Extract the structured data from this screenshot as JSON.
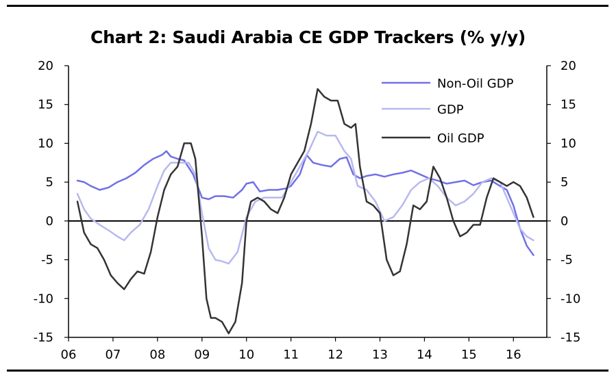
{
  "chart_data": {
    "type": "line",
    "title": "Chart 2: Saudi Arabia CE GDP Trackers (% y/y)",
    "xlabel": "",
    "ylabel": "",
    "ylim": [
      -15,
      20
    ],
    "yticks": [
      -15,
      -10,
      -5,
      0,
      5,
      10,
      15,
      20
    ],
    "ytick_labels": [
      "-15",
      "-10",
      "-5",
      "0",
      "5",
      "10",
      "15",
      "20"
    ],
    "xlim": [
      2006,
      2016.75
    ],
    "xticks": [
      2006,
      2007,
      2008,
      2009,
      2010,
      2011,
      2012,
      2013,
      2014,
      2015,
      2016
    ],
    "xtick_labels": [
      "06",
      "07",
      "08",
      "09",
      "10",
      "11",
      "12",
      "13",
      "14",
      "15",
      "16"
    ],
    "legend_position": "top-right",
    "series": [
      {
        "name": "Non-Oil GDP",
        "color": "#7070e6",
        "x": [
          2006.2,
          2006.35,
          2006.5,
          2006.7,
          2006.9,
          2007.1,
          2007.3,
          2007.5,
          2007.7,
          2007.9,
          2008.1,
          2008.2,
          2008.3,
          2008.45,
          2008.6,
          2008.8,
          2009.0,
          2009.15,
          2009.3,
          2009.5,
          2009.7,
          2009.9,
          2010.0,
          2010.15,
          2010.3,
          2010.5,
          2010.7,
          2010.9,
          2011.0,
          2011.2,
          2011.35,
          2011.5,
          2011.7,
          2011.9,
          2012.1,
          2012.25,
          2012.4,
          2012.55,
          2012.7,
          2012.9,
          2013.1,
          2013.3,
          2013.5,
          2013.7,
          2013.9,
          2014.1,
          2014.3,
          2014.5,
          2014.7,
          2014.9,
          2015.1,
          2015.3,
          2015.5,
          2015.7,
          2015.85,
          2016.0,
          2016.15,
          2016.3,
          2016.45
        ],
        "values": [
          5.2,
          5.0,
          4.5,
          4.0,
          4.3,
          5.0,
          5.5,
          6.2,
          7.2,
          8.0,
          8.5,
          9.0,
          8.3,
          8.0,
          7.8,
          6.0,
          3.0,
          2.8,
          3.2,
          3.2,
          3.0,
          4.0,
          4.8,
          5.0,
          3.8,
          4.0,
          4.0,
          4.2,
          4.5,
          6.0,
          8.5,
          7.5,
          7.2,
          7.0,
          8.0,
          8.2,
          6.0,
          5.5,
          5.8,
          6.0,
          5.7,
          6.0,
          6.2,
          6.5,
          6.0,
          5.5,
          5.2,
          4.8,
          5.0,
          5.2,
          4.6,
          5.0,
          5.2,
          4.5,
          4.0,
          2.0,
          -1.0,
          -3.2,
          -4.4
        ]
      },
      {
        "name": "GDP",
        "color": "#b8b8f0",
        "x": [
          2006.2,
          2006.35,
          2006.5,
          2006.7,
          2006.9,
          2007.1,
          2007.25,
          2007.4,
          2007.6,
          2007.8,
          2008.0,
          2008.15,
          2008.3,
          2008.5,
          2008.7,
          2008.85,
          2009.0,
          2009.15,
          2009.3,
          2009.45,
          2009.6,
          2009.8,
          2010.0,
          2010.2,
          2010.4,
          2010.6,
          2010.8,
          2011.0,
          2011.2,
          2011.4,
          2011.6,
          2011.8,
          2012.0,
          2012.2,
          2012.35,
          2012.5,
          2012.7,
          2012.9,
          2013.1,
          2013.3,
          2013.5,
          2013.7,
          2013.9,
          2014.1,
          2014.3,
          2014.5,
          2014.7,
          2014.9,
          2015.1,
          2015.3,
          2015.5,
          2015.7,
          2015.85,
          2016.0,
          2016.15,
          2016.3,
          2016.45
        ],
        "values": [
          3.5,
          1.5,
          0.3,
          -0.5,
          -1.2,
          -2.0,
          -2.5,
          -1.5,
          -0.5,
          1.5,
          4.5,
          6.5,
          7.5,
          7.5,
          7.5,
          6.0,
          1.0,
          -3.5,
          -5.0,
          -5.2,
          -5.5,
          -4.0,
          0.5,
          2.5,
          3.0,
          3.0,
          3.0,
          5.0,
          7.0,
          9.0,
          11.5,
          11.0,
          11.0,
          9.0,
          8.0,
          4.5,
          4.0,
          2.5,
          0.0,
          0.5,
          2.0,
          4.0,
          5.0,
          5.5,
          4.5,
          3.0,
          2.0,
          2.5,
          3.5,
          5.0,
          5.5,
          5.0,
          3.0,
          1.0,
          -1.0,
          -2.0,
          -2.5
        ]
      },
      {
        "name": "Oil GDP",
        "color": "#333333",
        "x": [
          2006.2,
          2006.35,
          2006.5,
          2006.65,
          2006.8,
          2006.95,
          2007.1,
          2007.25,
          2007.4,
          2007.55,
          2007.7,
          2007.85,
          2008.0,
          2008.15,
          2008.3,
          2008.45,
          2008.6,
          2008.75,
          2008.85,
          2009.0,
          2009.1,
          2009.2,
          2009.3,
          2009.45,
          2009.6,
          2009.75,
          2009.9,
          2010.0,
          2010.1,
          2010.25,
          2010.4,
          2010.55,
          2010.7,
          2010.85,
          2011.0,
          2011.15,
          2011.3,
          2011.45,
          2011.6,
          2011.75,
          2011.9,
          2012.05,
          2012.2,
          2012.35,
          2012.45,
          2012.55,
          2012.7,
          2012.85,
          2013.0,
          2013.15,
          2013.3,
          2013.45,
          2013.6,
          2013.75,
          2013.9,
          2014.05,
          2014.2,
          2014.35,
          2014.5,
          2014.65,
          2014.8,
          2014.95,
          2015.1,
          2015.25,
          2015.4,
          2015.55,
          2015.7,
          2015.85,
          2016.0,
          2016.15,
          2016.3,
          2016.45
        ],
        "values": [
          2.5,
          -1.5,
          -3.0,
          -3.5,
          -5.0,
          -7.0,
          -8.0,
          -8.8,
          -7.5,
          -6.5,
          -6.8,
          -4.0,
          0.5,
          4.0,
          6.0,
          7.0,
          10.0,
          10.0,
          8.0,
          -2.0,
          -10.0,
          -12.5,
          -12.5,
          -13.0,
          -14.5,
          -13.0,
          -8.0,
          0.0,
          2.5,
          3.0,
          2.5,
          1.5,
          1.0,
          3.0,
          6.0,
          7.5,
          9.0,
          12.5,
          17.0,
          16.0,
          15.5,
          15.5,
          12.5,
          12.0,
          12.5,
          7.0,
          2.5,
          2.0,
          1.0,
          -5.0,
          -7.0,
          -6.5,
          -3.0,
          2.0,
          1.5,
          2.5,
          7.0,
          5.5,
          3.0,
          0.0,
          -2.0,
          -1.5,
          -0.5,
          -0.5,
          3.0,
          5.5,
          5.0,
          4.5,
          5.0,
          4.5,
          3.0,
          0.5
        ]
      }
    ]
  }
}
